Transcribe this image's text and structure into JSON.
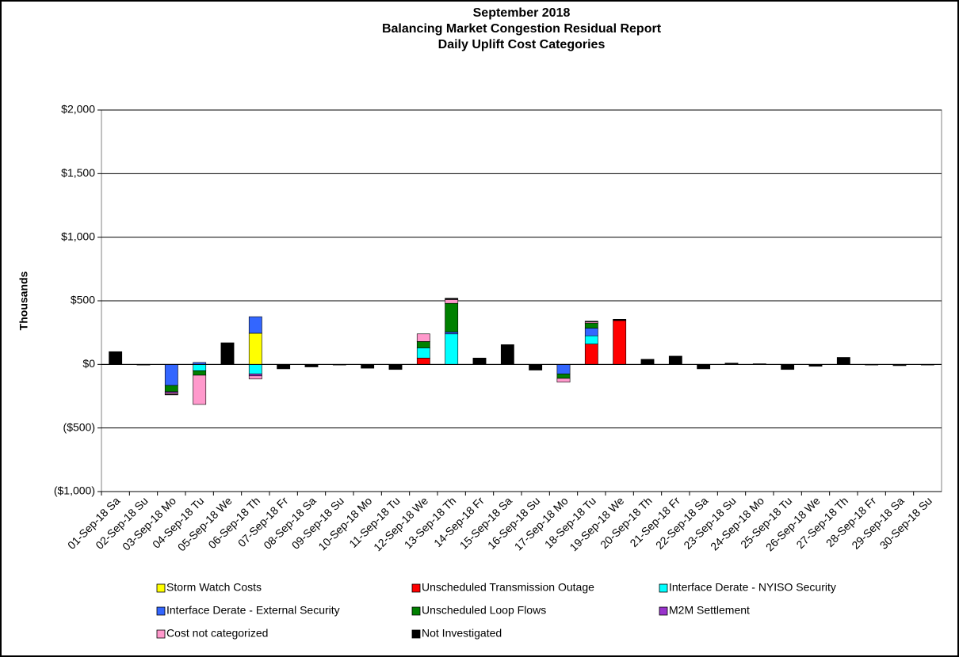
{
  "chart_data": {
    "type": "stacked_bar",
    "title": [
      "September 2018",
      "Balancing Market Congestion Residual Report",
      "Daily Uplift Cost Categories"
    ],
    "y_label": "Thousands",
    "categories": [
      "01-Sep-18 Sa",
      "02-Sep-18 Su",
      "03-Sep-18 Mo",
      "04-Sep-18 Tu",
      "05-Sep-18 We",
      "06-Sep-18 Th",
      "07-Sep-18 Fr",
      "08-Sep-18 Sa",
      "09-Sep-18 Su",
      "10-Sep-18 Mo",
      "11-Sep-18 Tu",
      "12-Sep-18 We",
      "13-Sep-18 Th",
      "14-Sep-18 Fr",
      "15-Sep-18 Sa",
      "16-Sep-18 Su",
      "17-Sep-18 Mo",
      "18-Sep-18 Tu",
      "19-Sep-18 We",
      "20-Sep-18 Th",
      "21-Sep-18 Fr",
      "22-Sep-18 Sa",
      "23-Sep-18 Su",
      "24-Sep-18 Mo",
      "25-Sep-18 Tu",
      "26-Sep-18 We",
      "27-Sep-18 Th",
      "28-Sep-18 Fr",
      "29-Sep-18 Sa",
      "30-Sep-18 Su"
    ],
    "series": [
      {
        "name": "Storm Watch Costs",
        "color": "#ffff00",
        "values": [
          0,
          0,
          0,
          0,
          0,
          245,
          0,
          0,
          0,
          0,
          0,
          0,
          0,
          0,
          0,
          0,
          0,
          0,
          0,
          0,
          0,
          0,
          0,
          0,
          0,
          0,
          0,
          0,
          0,
          0
        ]
      },
      {
        "name": "Unscheduled Transmission Outage",
        "color": "#ff0000",
        "values": [
          0,
          0,
          0,
          0,
          0,
          0,
          0,
          0,
          0,
          0,
          0,
          50,
          0,
          0,
          0,
          0,
          0,
          160,
          345,
          0,
          0,
          0,
          0,
          0,
          0,
          0,
          0,
          0,
          0,
          0
        ]
      },
      {
        "name": "Interface Derate - NYISO Security",
        "color": "#00ffff",
        "values": [
          0,
          0,
          0,
          -50,
          0,
          -75,
          0,
          0,
          0,
          0,
          0,
          80,
          240,
          0,
          0,
          0,
          0,
          65,
          0,
          0,
          0,
          0,
          0,
          0,
          0,
          0,
          0,
          0,
          0,
          0
        ]
      },
      {
        "name": "Interface Derate - External Security",
        "color": "#3366ff",
        "values": [
          0,
          0,
          -165,
          15,
          0,
          130,
          0,
          0,
          0,
          0,
          0,
          0,
          15,
          0,
          0,
          0,
          -75,
          60,
          0,
          0,
          0,
          0,
          0,
          0,
          0,
          0,
          0,
          0,
          0,
          0
        ]
      },
      {
        "name": "Unscheduled Loop Flows",
        "color": "#008000",
        "values": [
          0,
          0,
          -50,
          -35,
          0,
          0,
          0,
          0,
          0,
          0,
          0,
          50,
          225,
          0,
          0,
          0,
          -35,
          40,
          0,
          0,
          0,
          0,
          0,
          0,
          0,
          0,
          0,
          0,
          0,
          0
        ]
      },
      {
        "name": "M2M Settlement",
        "color": "#9933cc",
        "values": [
          0,
          0,
          -10,
          0,
          0,
          -15,
          0,
          0,
          0,
          0,
          0,
          0,
          0,
          0,
          0,
          0,
          0,
          0,
          0,
          0,
          0,
          0,
          0,
          0,
          0,
          0,
          0,
          0,
          0,
          0
        ]
      },
      {
        "name": "Cost not categorized",
        "color": "#ff99cc",
        "values": [
          0,
          0,
          -10,
          -230,
          0,
          -25,
          0,
          0,
          0,
          0,
          0,
          60,
          30,
          0,
          0,
          0,
          -30,
          10,
          0,
          0,
          0,
          0,
          0,
          0,
          0,
          0,
          0,
          0,
          0,
          0
        ]
      },
      {
        "name": "Not Investigated",
        "color": "#000000",
        "values": [
          100,
          -5,
          -5,
          0,
          170,
          0,
          -35,
          -20,
          -5,
          -30,
          -40,
          0,
          10,
          50,
          155,
          -45,
          0,
          5,
          10,
          40,
          65,
          -35,
          10,
          5,
          -40,
          -15,
          55,
          -5,
          -10,
          -5
        ]
      }
    ],
    "ylim": [
      -1000,
      2000
    ],
    "yticks": [
      {
        "value": -1000,
        "label": "($1,000)"
      },
      {
        "value": -500,
        "label": "($500)"
      },
      {
        "value": 0,
        "label": "$0"
      },
      {
        "value": 500,
        "label": "$500"
      },
      {
        "value": 1000,
        "label": "$1,000"
      },
      {
        "value": 1500,
        "label": "$1,500"
      },
      {
        "value": 2000,
        "label": "$2,000"
      }
    ],
    "negative_tick_color": "#ff0000",
    "grid": true,
    "legend": "bottom"
  }
}
